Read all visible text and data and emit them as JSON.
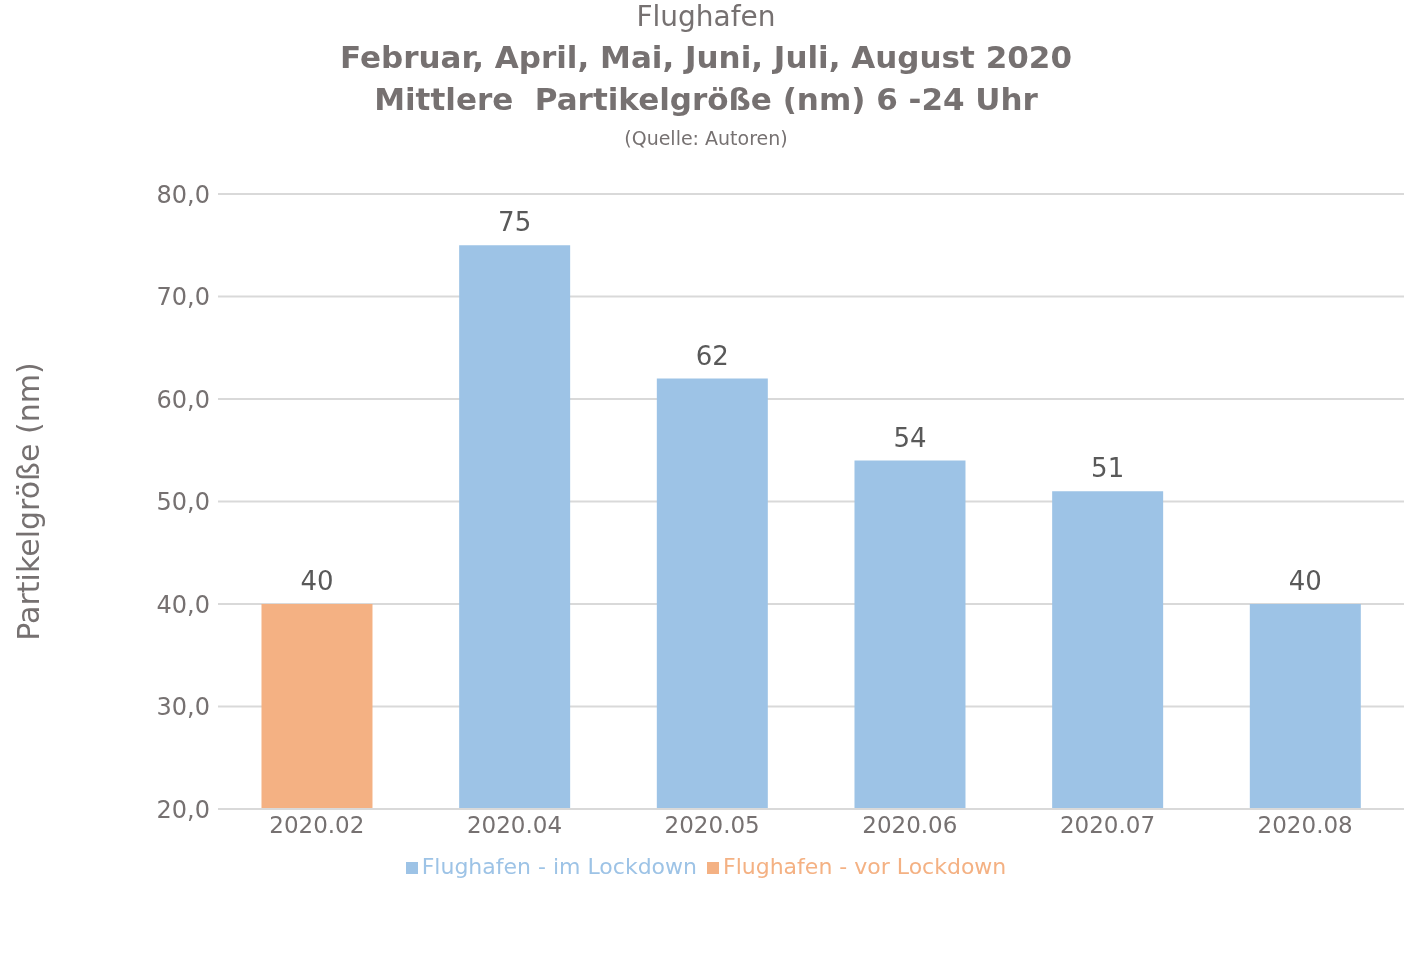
{
  "chart_data": {
    "type": "bar",
    "title": "Flughafen",
    "subtitle": "Februar, April, Mai, Juni, Juli, August 2020\nMittlere  Partikelgröße (nm) 6 -24 Uhr",
    "annotations": [
      "(Quelle: Autoren)"
    ],
    "ylabel": "Partikelgröße (nm)",
    "categories": [
      "2020.02",
      "2020.04",
      "2020.05",
      "2020.06",
      "2020.07",
      "2020.08"
    ],
    "series": [
      {
        "name": "Flughafen - im Lockdown",
        "color": "#9dc3e6",
        "values": [
          null,
          75,
          62,
          54,
          51,
          40
        ]
      },
      {
        "name": "Flughafen - vor Lockdown",
        "color": "#f4b183",
        "values": [
          40,
          null,
          null,
          null,
          null,
          null
        ]
      }
    ],
    "stacked": true,
    "data_labels": true,
    "ylim": [
      20,
      80
    ],
    "yticks": [
      {
        "value": 20,
        "label": "20,0"
      },
      {
        "value": 30,
        "label": "30,0"
      },
      {
        "value": 40,
        "label": "40,0"
      },
      {
        "value": 50,
        "label": "50,0"
      },
      {
        "value": 60,
        "label": "60,0"
      },
      {
        "value": 70,
        "label": "70,0"
      },
      {
        "value": 80,
        "label": "80,0"
      }
    ],
    "grid": "y",
    "legend": "bottom"
  }
}
